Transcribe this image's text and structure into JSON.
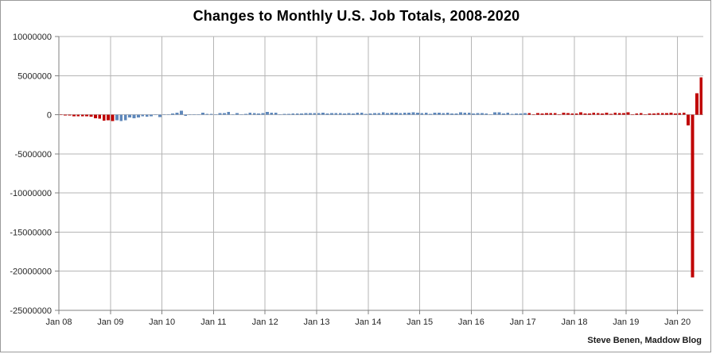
{
  "window": {
    "title": "Changes to Monthly U.S. Job Totals, 2008-2020"
  },
  "footer": {
    "attribution": "Steve Benen, Maddow Blog"
  },
  "chart_data": {
    "type": "bar",
    "title": "Changes to Monthly U.S. Job Totals, 2008-2020",
    "xlabel": "",
    "ylabel": "",
    "unit": "net monthly change in U.S. jobs",
    "x_start": "Jan 2008",
    "x_end": "Jun 2020",
    "months_per_bar": 1,
    "ylim": [
      -25000000,
      10000000
    ],
    "grid": true,
    "legend": "none",
    "y_tick_values": [
      10000000,
      5000000,
      0,
      -5000000,
      -10000000,
      -15000000,
      -20000000,
      -25000000
    ],
    "y_tick_labels": [
      "10000000",
      "5000000",
      "0",
      "-5000000",
      "-10000000",
      "-15000000",
      "-20000000",
      "-25000000"
    ],
    "x_tick_labels": [
      "Jan 08",
      "Jan 09",
      "Jan 10",
      "Jan 11",
      "Jan 12",
      "Jan 13",
      "Jan 14",
      "Jan 15",
      "Jan 16",
      "Jan 17",
      "Jan 18",
      "Jan 19",
      "Jan 20"
    ],
    "colors": {
      "red": "#c00000",
      "blue": "#5f88bb"
    },
    "color_segments": [
      {
        "from_index": 0,
        "to_index": 12,
        "color": "red"
      },
      {
        "from_index": 13,
        "to_index": 108,
        "color": "blue"
      },
      {
        "from_index": 109,
        "to_index": 149,
        "color": "red"
      }
    ],
    "values": [
      -17000,
      -83000,
      -72000,
      -214000,
      -182000,
      -172000,
      -210000,
      -259000,
      -452000,
      -474000,
      -765000,
      -697000,
      -798000,
      -701000,
      -826000,
      -684000,
      -354000,
      -467000,
      -327000,
      -216000,
      -227000,
      -198000,
      -6000,
      -283000,
      18000,
      -50000,
      156000,
      251000,
      516000,
      -122000,
      -61000,
      -42000,
      -52000,
      277000,
      123000,
      88000,
      42000,
      188000,
      225000,
      346000,
      73000,
      235000,
      70000,
      107000,
      246000,
      202000,
      146000,
      207000,
      338000,
      257000,
      239000,
      75000,
      115000,
      87000,
      143000,
      181000,
      161000,
      225000,
      203000,
      214000,
      197000,
      280000,
      141000,
      203000,
      199000,
      201000,
      149000,
      202000,
      164000,
      237000,
      274000,
      84000,
      144000,
      222000,
      203000,
      304000,
      229000,
      267000,
      243000,
      203000,
      271000,
      243000,
      321000,
      256000,
      201000,
      266000,
      84000,
      251000,
      273000,
      228000,
      277000,
      150000,
      149000,
      295000,
      280000,
      271000,
      168000,
      233000,
      225000,
      153000,
      43000,
      297000,
      291000,
      176000,
      249000,
      124000,
      164000,
      155000,
      216000,
      232000,
      50000,
      207000,
      145000,
      210000,
      189000,
      221000,
      14000,
      271000,
      216000,
      175000,
      176000,
      324000,
      155000,
      175000,
      268000,
      208000,
      178000,
      282000,
      108000,
      277000,
      196000,
      227000,
      312000,
      56000,
      153000,
      216000,
      62000,
      178000,
      166000,
      219000,
      208000,
      185000,
      261000,
      184000,
      214000,
      251000,
      -1373000,
      -20787000,
      2725000,
      4800000
    ]
  }
}
